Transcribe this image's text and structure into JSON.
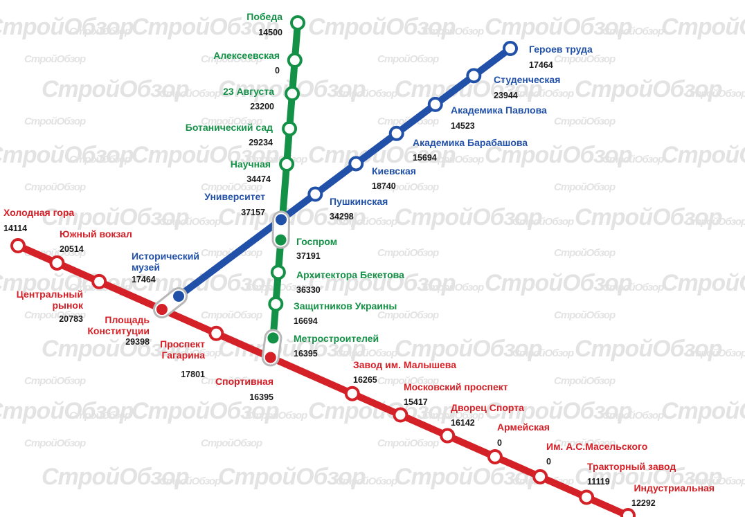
{
  "watermark": "СтройОбзор",
  "colors": {
    "red": "#d42027",
    "green": "#139146",
    "blue": "#2050a8",
    "number": "#1a1a1a",
    "interchange": "#b8b8b8"
  },
  "lines": [
    {
      "id": "red",
      "color": "#d42027",
      "stations": [
        {
          "name": "Холодная гора",
          "value": "14114"
        },
        {
          "name": "Южный вокзал",
          "value": "20514"
        },
        {
          "name": "Центральный рынок",
          "value": "20783"
        },
        {
          "name": "Площадь Конституции",
          "value": "29398"
        },
        {
          "name": "Проспект Гагарина",
          "value": "17801"
        },
        {
          "name": "Спортивная",
          "value": "16395"
        },
        {
          "name": "Завод им. Малышева",
          "value": "16265"
        },
        {
          "name": "Московский проспект",
          "value": "15417"
        },
        {
          "name": "Дворец Спорта",
          "value": "16142"
        },
        {
          "name": "Армейская",
          "value": "0"
        },
        {
          "name": "Им. А.С.Масельского",
          "value": "0"
        },
        {
          "name": "Тракторный завод",
          "value": "11119"
        },
        {
          "name": "Индустриальная",
          "value": "12292"
        }
      ]
    },
    {
      "id": "green",
      "color": "#139146",
      "stations": [
        {
          "name": "Победа",
          "value": "14500"
        },
        {
          "name": "Алексеевская",
          "value": "0"
        },
        {
          "name": "23 Августа",
          "value": "23200"
        },
        {
          "name": "Ботанический сад",
          "value": "29234"
        },
        {
          "name": "Научная",
          "value": "34474"
        },
        {
          "name": "Госпром",
          "value": "37191"
        },
        {
          "name": "Архитектора Бекетова",
          "value": "36330"
        },
        {
          "name": "Защитников Украины",
          "value": "16694"
        },
        {
          "name": "Метростроителей",
          "value": "16395"
        }
      ]
    },
    {
      "id": "blue",
      "color": "#2050a8",
      "stations": [
        {
          "name": "Исторический музей",
          "value": "17464"
        },
        {
          "name": "Университет",
          "value": "37157"
        },
        {
          "name": "Пушкинская",
          "value": "34298"
        },
        {
          "name": "Киевская",
          "value": "18740"
        },
        {
          "name": "Академика Барабашова",
          "value": "15694"
        },
        {
          "name": "Академика Павлова",
          "value": "14523"
        },
        {
          "name": "Студенческая",
          "value": "23944"
        },
        {
          "name": "Героев труда",
          "value": "17464"
        }
      ]
    }
  ],
  "transfers": [
    [
      "Площадь Конституции",
      "Исторический музей"
    ],
    [
      "Спортивная",
      "Метростроителей"
    ],
    [
      "Госпром",
      "Университет"
    ]
  ]
}
